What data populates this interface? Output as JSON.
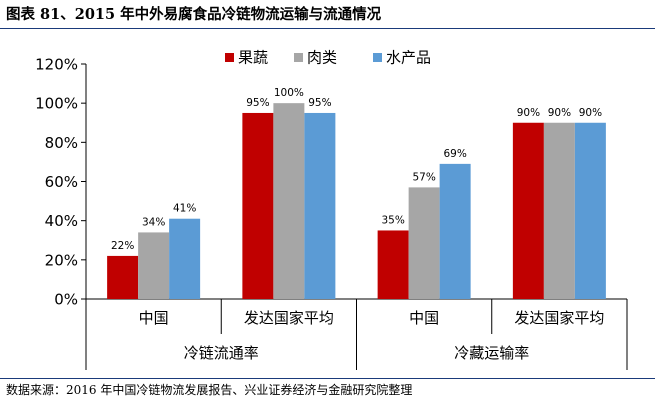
{
  "title": "图表 81、2015 年中外易腐食品冷链物流运输与流通情况",
  "source": "数据来源：2016 年中国冷链物流发展报告、兴业证券经济与金融研究院整理",
  "colors": {
    "series": [
      "#c00000",
      "#a6a6a6",
      "#5b9bd5"
    ],
    "rule": "#1a3a7a"
  },
  "chart_data": {
    "type": "bar",
    "categories": [
      "中国",
      "发达国家平均",
      "中国",
      "发达国家平均"
    ],
    "groups": [
      {
        "label": "冷链流通率",
        "categories": [
          0,
          1
        ]
      },
      {
        "label": "冷藏运输率",
        "categories": [
          2,
          3
        ]
      }
    ],
    "series": [
      {
        "name": "果蔬",
        "values": [
          22,
          95,
          35,
          90
        ],
        "labels": [
          "22%",
          "95%",
          "35%",
          "90%"
        ]
      },
      {
        "name": "肉类",
        "values": [
          34,
          100,
          57,
          90
        ],
        "labels": [
          "34%",
          "100%",
          "57%",
          "90%"
        ]
      },
      {
        "name": "水产品",
        "values": [
          41,
          95,
          69,
          90
        ],
        "labels": [
          "41%",
          "95%",
          "69%",
          "90%"
        ]
      }
    ],
    "ylim": [
      0,
      120
    ],
    "yticks": [
      0,
      20,
      40,
      60,
      80,
      100,
      120
    ],
    "ytick_labels": [
      "0%",
      "20%",
      "40%",
      "60%",
      "80%",
      "100%",
      "120%"
    ],
    "legend_position": "top-right",
    "grid": false
  }
}
